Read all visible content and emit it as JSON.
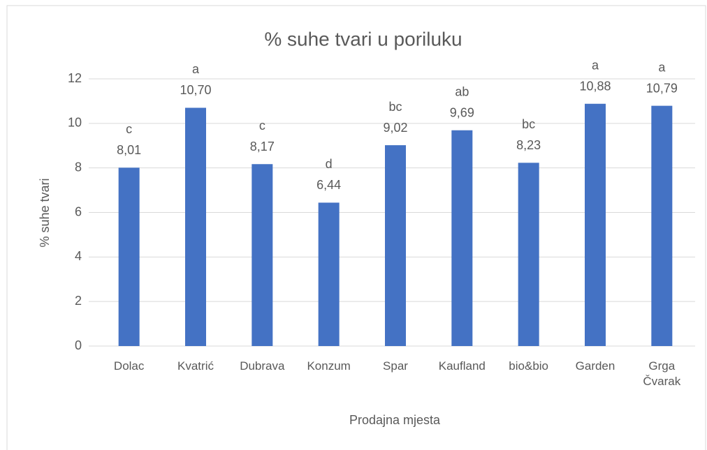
{
  "chart_data": {
    "type": "bar",
    "title": "% suhe tvari u poriluku",
    "x_label": "Prodajna mjesta",
    "y_label": "% suhe tvari",
    "categories": [
      "Dolac",
      "Kvatrić",
      "Dubrava",
      "Konzum",
      "Spar",
      "Kaufland",
      "bio&bio",
      "Garden",
      "Grga Čvarak"
    ],
    "values": [
      8.01,
      10.7,
      8.17,
      6.44,
      9.02,
      9.69,
      8.23,
      10.88,
      10.79
    ],
    "value_labels": [
      "8,01",
      "10,70",
      "8,17",
      "6,44",
      "9,02",
      "9,69",
      "8,23",
      "10,88",
      "10,79"
    ],
    "annotations": [
      "c",
      "a",
      "c",
      "d",
      "bc",
      "ab",
      "bc",
      "a",
      "a"
    ],
    "color": "#4472c4",
    "ylim": [
      0,
      12
    ],
    "yticks": [
      0,
      2,
      4,
      6,
      8,
      10,
      12
    ],
    "grid": true
  }
}
